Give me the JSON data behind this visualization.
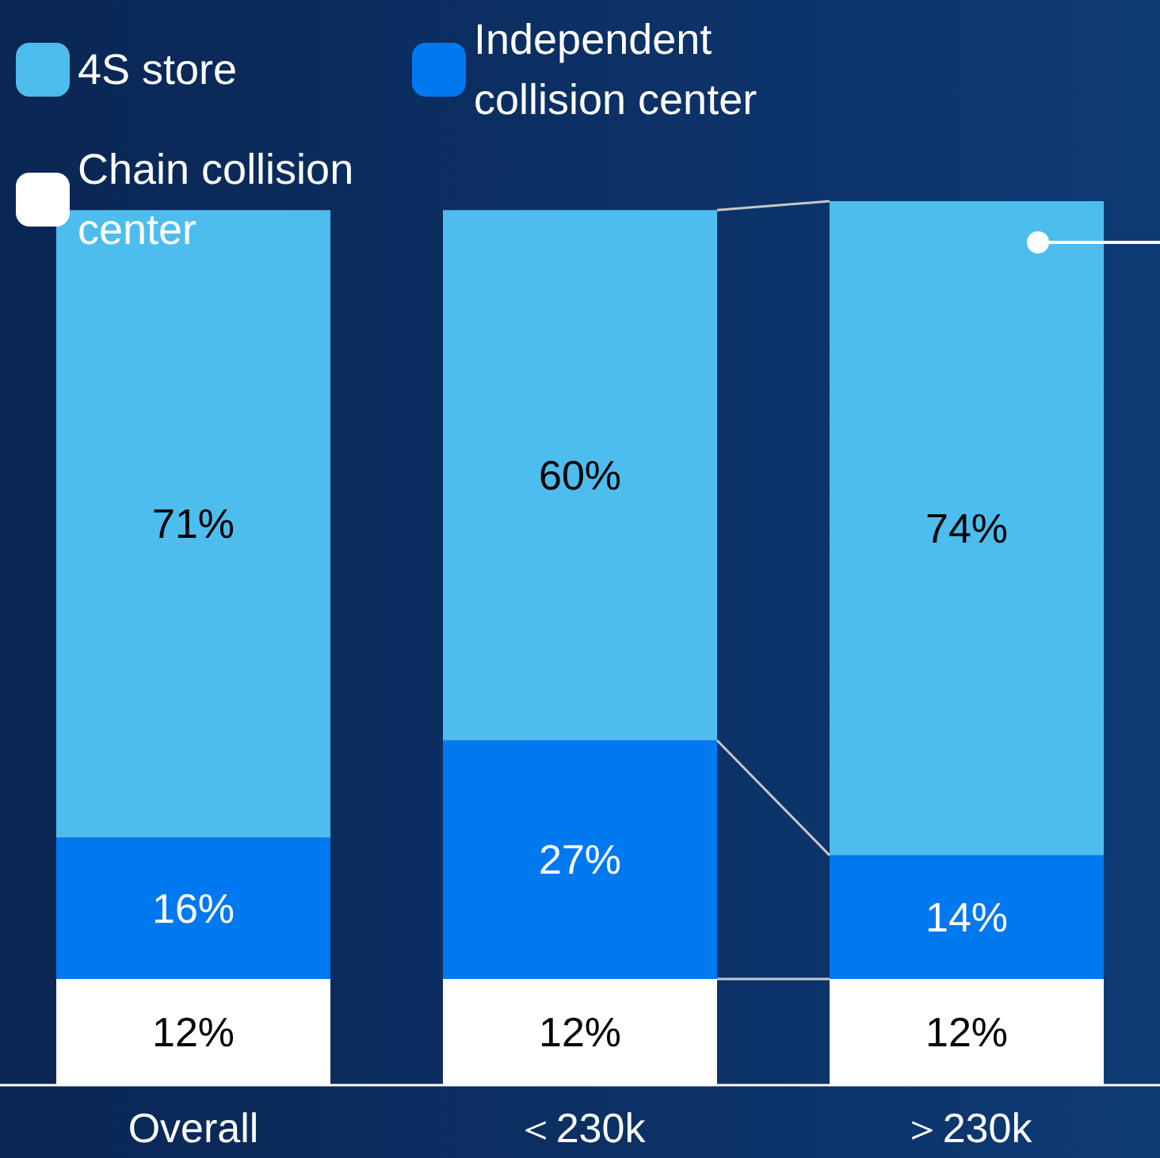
{
  "chart_data": {
    "type": "bar",
    "stacked": true,
    "categories": [
      "Overall",
      "＜230k",
      "＞230k"
    ],
    "series": [
      {
        "name": "Chain collision center",
        "color": "#ffffff",
        "values": [
          12,
          12,
          12
        ],
        "value_labels": [
          "12%",
          "12%",
          "12%"
        ]
      },
      {
        "name": "Independent collision center",
        "color": "#0078f0",
        "values": [
          16,
          27,
          14
        ],
        "value_labels": [
          "16%",
          "27%",
          "14%"
        ]
      },
      {
        "name": "4S store",
        "color": "#4dbdee",
        "values": [
          71,
          60,
          74
        ],
        "value_labels": [
          "71%",
          "60%",
          "74%"
        ]
      }
    ],
    "legend": "top left"
  }
}
